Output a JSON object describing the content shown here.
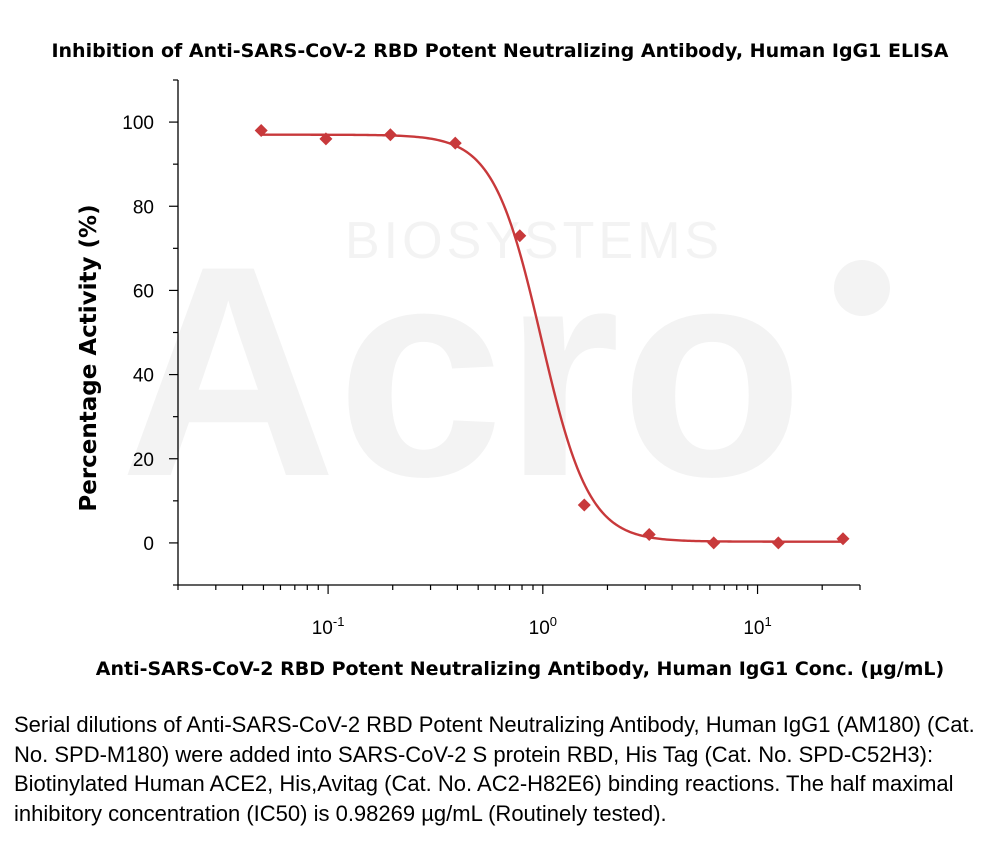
{
  "chart_data": {
    "type": "scatter",
    "title": "Inhibition of Anti-SARS-CoV-2 RBD Potent Neutralizing Antibody, Human IgG1 ELISA",
    "xlabel": "Anti-SARS-CoV-2 RBD Potent Neutralizing Antibody, Human IgG1 Conc. (µg/mL)",
    "ylabel": "Percentage Activity (%)",
    "x_scale": "log",
    "xlim": [
      0.02,
      30
    ],
    "ylim": [
      -10,
      110
    ],
    "x_ticks": [
      {
        "base": "10",
        "exp": "-1"
      },
      {
        "base": "10",
        "exp": "0"
      },
      {
        "base": "10",
        "exp": "1"
      }
    ],
    "y_ticks": [
      0,
      20,
      40,
      60,
      80,
      100
    ],
    "series": [
      {
        "color": "#c8393b",
        "marker": "diamond",
        "x": [
          0.0488,
          0.0977,
          0.195,
          0.391,
          0.781,
          1.56,
          3.13,
          6.25,
          12.5,
          25
        ],
        "y": [
          98,
          96,
          97,
          95,
          73,
          9,
          2,
          0,
          0,
          1
        ]
      }
    ],
    "fit_curve": {
      "type": "four-parameter logistic",
      "color": "#c8393b",
      "top": 97,
      "bottom": 0.3,
      "ic50": 0.98269,
      "hill": 3.9
    },
    "grid": false,
    "watermark": {
      "big": "Acro",
      "small": "BIOSYSTEMS"
    }
  },
  "caption": "Serial dilutions of Anti-SARS-CoV-2 RBD Potent Neutralizing Antibody, Human IgG1 (AM180) (Cat. No. SPD-M180) were added into SARS-CoV-2 S protein RBD, His Tag (Cat. No. SPD-C52H3): Biotinylated Human ACE2, His,Avitag (Cat. No. AC2-H82E6) binding reactions. The half maximal inhibitory concentration (IC50) is 0.98269 µg/mL (Routinely tested)."
}
